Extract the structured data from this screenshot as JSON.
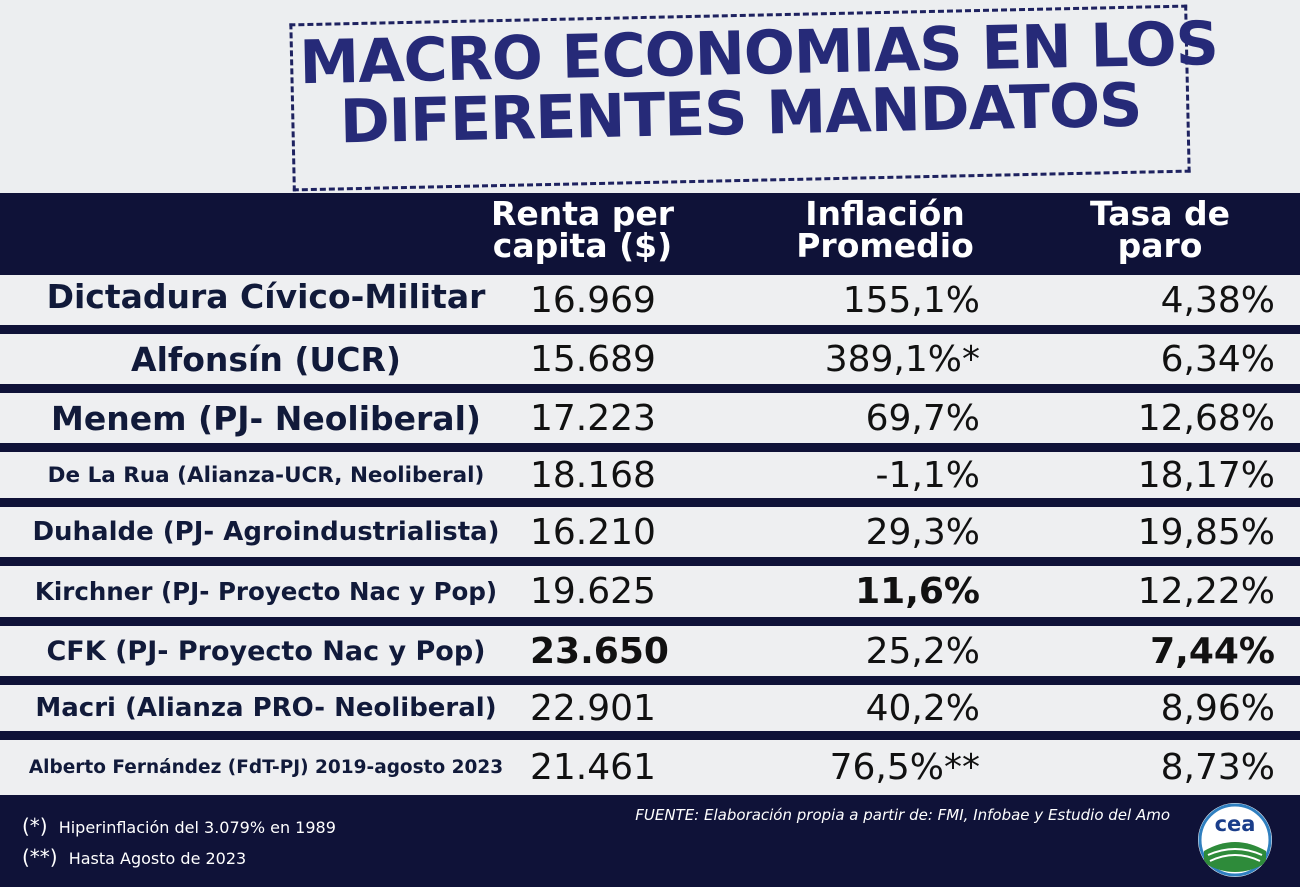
{
  "title": {
    "line1": "MACRO ECONOMIAS EN LOS",
    "line2": "DIFERENTES MANDATOS"
  },
  "headers": {
    "renta_line1": "Renta per",
    "renta_line2": "capita ($)",
    "inflacion_line1": "Inflación",
    "inflacion_line2": "Promedio",
    "paro_line1": "Tasa de",
    "paro_line2": "paro"
  },
  "rows": [
    {
      "name": "Dictadura Cívico-Militar",
      "renta": "16.969",
      "inflacion": "155,1%",
      "paro": "4,38%"
    },
    {
      "name": "Alfonsín (UCR)",
      "renta": "15.689",
      "inflacion": "389,1%*",
      "paro": "6,34%"
    },
    {
      "name": "Menem (PJ- Neoliberal)",
      "renta": "17.223",
      "inflacion": "69,7%",
      "paro": "12,68%"
    },
    {
      "name": "De La Rua (Alianza-UCR, Neoliberal)",
      "renta": "18.168",
      "inflacion": "-1,1%",
      "paro": "18,17%"
    },
    {
      "name": "Duhalde (PJ- Agroindustrialista)",
      "renta": "16.210",
      "inflacion": "29,3%",
      "paro": "19,85%"
    },
    {
      "name": "Kirchner (PJ- Proyecto Nac y Pop)",
      "renta": "19.625",
      "inflacion": "11,6%",
      "paro": "12,22%"
    },
    {
      "name": "CFK  (PJ- Proyecto Nac y Pop)",
      "renta": "23.650",
      "inflacion": "25,2%",
      "paro": "7,44%"
    },
    {
      "name": "Macri (Alianza PRO- Neoliberal)",
      "renta": "22.901",
      "inflacion": "40,2%",
      "paro": "8,96%"
    },
    {
      "name": "Alberto Fernández (FdT-PJ) 2019-agosto 2023",
      "renta": "21.461",
      "inflacion": "76,5%**",
      "paro": "8,73%"
    }
  ],
  "footnotes": {
    "note1_mark": "(*)",
    "note1_text": "Hiperinflación del 3.079% en 1989",
    "note2_mark": "(**)",
    "note2_text": "Hasta Agosto de 2023"
  },
  "source": "FUENTE: Elaboración propia a partir de: FMI, Infobae y Estudio del Amo",
  "logo": {
    "text": "cea",
    "icon": "cea-logo-icon"
  },
  "colors": {
    "navy": "#0f1238",
    "title_blue": "#262a78",
    "row_bg": "#eeeff1"
  }
}
